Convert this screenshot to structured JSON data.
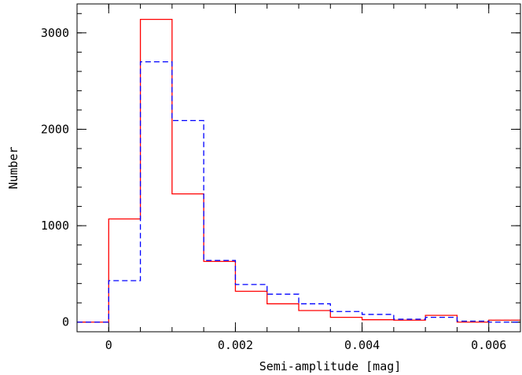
{
  "chart_data": {
    "type": "histogram",
    "xlabel": "Semi-amplitude [mag]",
    "ylabel": "Number",
    "xlim": [
      -0.0005,
      0.0065
    ],
    "ylim": [
      -100,
      3300
    ],
    "x_ticks": [
      {
        "value": 0,
        "label": "0"
      },
      {
        "value": 0.002,
        "label": "0.002"
      },
      {
        "value": 0.004,
        "label": "0.004"
      },
      {
        "value": 0.006,
        "label": "0.006"
      }
    ],
    "y_ticks": [
      {
        "value": 0,
        "label": "0"
      },
      {
        "value": 1000,
        "label": "1000"
      },
      {
        "value": 2000,
        "label": "2000"
      },
      {
        "value": 3000,
        "label": "3000"
      }
    ],
    "x_minor_step": 0.0005,
    "y_minor_step": 200,
    "bin_edges": [
      -0.0005,
      0,
      0.0005,
      0.001,
      0.0015,
      0.002,
      0.0025,
      0.003,
      0.0035,
      0.004,
      0.0045,
      0.005,
      0.0055,
      0.006,
      0.0065
    ],
    "series": [
      {
        "style": "solid",
        "color": "#ff0000",
        "values": [
          0,
          1070,
          3140,
          1330,
          630,
          320,
          190,
          120,
          50,
          25,
          20,
          70,
          0,
          20
        ]
      },
      {
        "style": "dashed",
        "color": "#0000ff",
        "values": [
          0,
          430,
          2700,
          2090,
          640,
          390,
          290,
          190,
          110,
          80,
          30,
          50,
          10,
          0
        ]
      }
    ],
    "grid": false,
    "legend": "none"
  }
}
